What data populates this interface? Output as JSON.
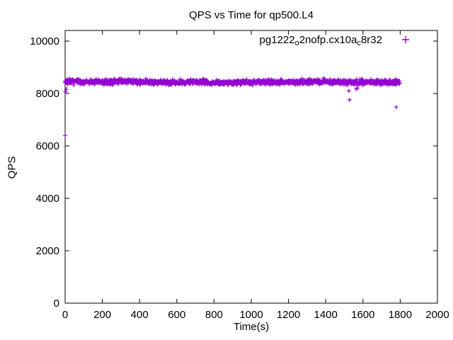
{
  "title": "QPS vs Time for qp500.L4",
  "axes": {
    "xlabel": "Time(s)",
    "ylabel": "QPS"
  },
  "legend": {
    "label_plain": "pg1222_o2nofp.cx10a_c8r32",
    "label_parts": [
      {
        "text": "pg1222",
        "sub": false
      },
      {
        "text": "o",
        "sub": true
      },
      {
        "text": "2nofp.cx10a",
        "sub": false
      },
      {
        "text": "c",
        "sub": true
      },
      {
        "text": "8r32",
        "sub": false
      }
    ],
    "marker_glyph": "plus",
    "position": "top-right-inside"
  },
  "colors": {
    "series": "#9400D3",
    "axis": "#000000",
    "background": "#ffffff",
    "text": "#000000"
  },
  "chart_data": {
    "type": "scatter",
    "title": "QPS vs Time for qp500.L4",
    "xlabel": "Time(s)",
    "ylabel": "QPS",
    "xlim": [
      0,
      2000
    ],
    "ylim": [
      0,
      10000
    ],
    "xticks": [
      0,
      200,
      400,
      600,
      800,
      1000,
      1200,
      1400,
      1600,
      1800,
      2000
    ],
    "yticks": [
      0,
      2000,
      4000,
      6000,
      8000,
      10000
    ],
    "grid": false,
    "border": "full-box-with-mirrored-ticks",
    "legend_position": "top-right",
    "series": [
      {
        "name": "pg1222_o2nofp.cx10a_c8r32",
        "color": "#9400D3",
        "marker": "plus",
        "band_summary": {
          "description": "dense steady-state band of ~1s samples",
          "t_start": 0,
          "t_end": 1797,
          "n_points": 1300,
          "mean_qps": 8435,
          "typical_spread_qps": 95,
          "approx_range_qps": [
            8250,
            8650
          ],
          "seed": 7
        },
        "outliers": [
          [
            0,
            6400
          ],
          [
            2,
            8060
          ],
          [
            6,
            8160
          ],
          [
            1524,
            8100
          ],
          [
            1528,
            7760
          ],
          [
            1563,
            8170
          ],
          [
            1571,
            8210
          ],
          [
            1779,
            7480
          ]
        ]
      }
    ]
  }
}
